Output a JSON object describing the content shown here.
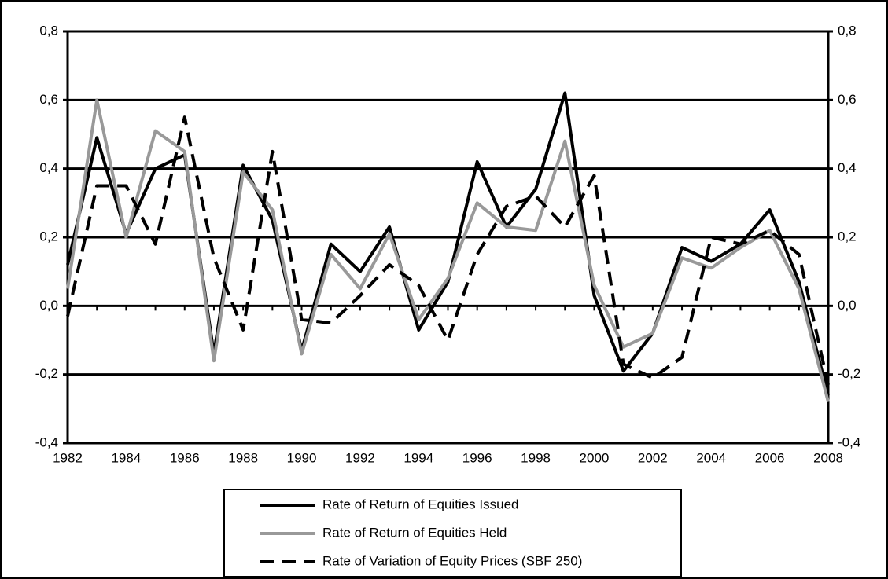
{
  "chart_data": {
    "type": "line",
    "x": [
      1982,
      1983,
      1984,
      1985,
      1986,
      1987,
      1988,
      1989,
      1990,
      1991,
      1992,
      1993,
      1994,
      1995,
      1996,
      1997,
      1998,
      1999,
      2000,
      2001,
      2002,
      2003,
      2004,
      2005,
      2006,
      2007,
      2008
    ],
    "xlim": [
      1982,
      2008
    ],
    "xticks": [
      1982,
      1984,
      1986,
      1988,
      1990,
      1992,
      1994,
      1996,
      1998,
      2000,
      2002,
      2004,
      2006,
      2008
    ],
    "ylim": [
      -0.4,
      0.8
    ],
    "yticks": [
      {
        "value": -0.4,
        "label": "-0,4"
      },
      {
        "value": -0.2,
        "label": "-0,2"
      },
      {
        "value": 0,
        "label": "0,0"
      },
      {
        "value": 0.2,
        "label": "0,2"
      },
      {
        "value": 0.4,
        "label": "0,4"
      },
      {
        "value": 0.6,
        "label": "0,6"
      },
      {
        "value": 0.8,
        "label": "0,8"
      }
    ],
    "grid": true,
    "legend": "bottom",
    "series": [
      {
        "name": "Rate of Return of Equities Issued",
        "color": "#000000",
        "dash": "solid",
        "values": [
          0.12,
          0.49,
          0.21,
          0.4,
          0.44,
          -0.14,
          0.41,
          0.25,
          -0.13,
          0.18,
          0.1,
          0.23,
          -0.07,
          0.07,
          0.42,
          0.23,
          0.34,
          0.62,
          0.03,
          -0.19,
          -0.08,
          0.17,
          0.13,
          0.18,
          0.28,
          0.07,
          -0.26
        ]
      },
      {
        "name": "Rate of Return of Equities Held",
        "color": "#999999",
        "dash": "solid",
        "values": [
          0.05,
          0.6,
          0.2,
          0.51,
          0.45,
          -0.16,
          0.39,
          0.28,
          -0.14,
          0.15,
          0.05,
          0.21,
          -0.04,
          0.08,
          0.3,
          0.23,
          0.22,
          0.48,
          0.06,
          -0.12,
          -0.08,
          0.14,
          0.11,
          0.17,
          0.22,
          0.05,
          -0.28
        ]
      },
      {
        "name": "Rate of Variation of Equity Prices (SBF 250)",
        "color": "#000000",
        "dash": "dashed",
        "values": [
          -0.03,
          0.35,
          0.35,
          0.18,
          0.55,
          0.14,
          -0.07,
          0.45,
          -0.04,
          -0.05,
          0.03,
          0.12,
          0.06,
          -0.1,
          0.15,
          0.29,
          0.32,
          0.23,
          0.38,
          -0.17,
          -0.21,
          -0.15,
          0.2,
          0.18,
          0.22,
          0.15,
          -0.23
        ]
      }
    ]
  }
}
